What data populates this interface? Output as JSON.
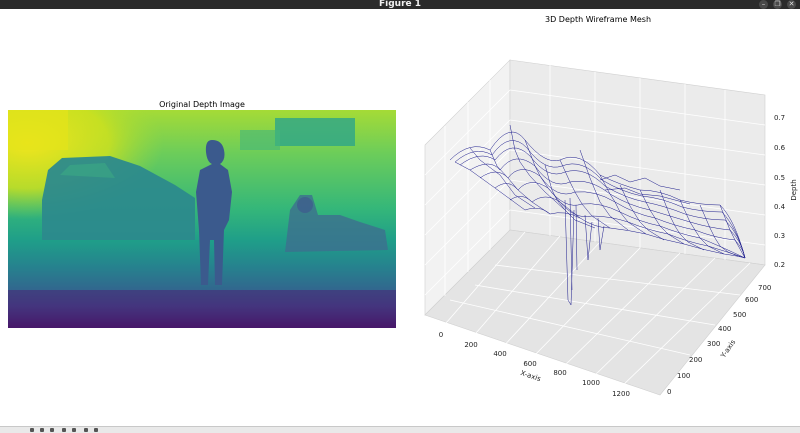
{
  "window": {
    "title": "Figure 1",
    "controls": {
      "minimize_icon": "–",
      "restore_icon": "❐",
      "close_icon": "✕"
    }
  },
  "left_plot": {
    "title": "Original Depth Image"
  },
  "right_plot": {
    "title": "3D Depth Wireframe Mesh",
    "xlabel": "X-axis",
    "ylabel": "Y-axis",
    "zlabel": "Depth",
    "x_ticks": [
      "0",
      "200",
      "400",
      "600",
      "800",
      "1000",
      "1200"
    ],
    "y_ticks": [
      "0",
      "100",
      "200",
      "300",
      "400",
      "500",
      "600",
      "700"
    ],
    "z_ticks": [
      "0.2",
      "0.3",
      "0.4",
      "0.5",
      "0.6",
      "0.7"
    ],
    "mesh_color": "#1a1a8c"
  },
  "toolbar": {
    "icons": [
      "home-icon",
      "back-icon",
      "forward-icon",
      "pan-icon",
      "zoom-icon",
      "configure-icon",
      "save-icon"
    ]
  },
  "colors": {
    "viridis_high": "#f1e51d",
    "viridis_mid": "#21918c",
    "viridis_low": "#440154"
  }
}
